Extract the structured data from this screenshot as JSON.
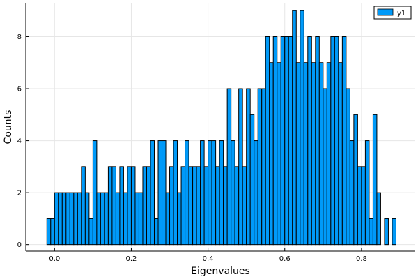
{
  "chart_data": {
    "type": "bar",
    "subtype": "histogram",
    "title": "",
    "xlabel": "Eigenvalues",
    "ylabel": "Counts",
    "xlim": [
      -0.075,
      0.94
    ],
    "ylim": [
      -0.25,
      9.3
    ],
    "xticks": [
      0.0,
      0.2,
      0.4,
      0.6,
      0.8
    ],
    "xtick_labels": [
      "0.0",
      "0.2",
      "0.4",
      "0.6",
      "0.8"
    ],
    "yticks": [
      0,
      2,
      4,
      6,
      8
    ],
    "ytick_labels": [
      "0",
      "2",
      "4",
      "6",
      "8"
    ],
    "grid": true,
    "legend": {
      "position": "top-right",
      "entries": [
        "y1"
      ]
    },
    "bin_start": -0.02,
    "bin_width": 0.01,
    "series": [
      {
        "name": "y1",
        "color": "#009af9",
        "values": [
          1,
          1,
          2,
          2,
          2,
          2,
          2,
          2,
          2,
          3,
          2,
          1,
          4,
          2,
          2,
          2,
          3,
          3,
          2,
          3,
          2,
          3,
          3,
          2,
          2,
          3,
          3,
          4,
          1,
          4,
          4,
          2,
          3,
          4,
          2,
          3,
          4,
          3,
          3,
          3,
          4,
          3,
          4,
          4,
          3,
          4,
          3,
          6,
          4,
          3,
          6,
          3,
          6,
          5,
          4,
          6,
          6,
          8,
          7,
          8,
          7,
          8,
          8,
          8,
          9,
          7,
          9,
          7,
          8,
          7,
          8,
          7,
          6,
          7,
          8,
          8,
          7,
          8,
          6,
          4,
          5,
          3,
          3,
          4,
          1,
          5,
          2,
          0,
          1,
          0,
          1
        ]
      }
    ]
  }
}
